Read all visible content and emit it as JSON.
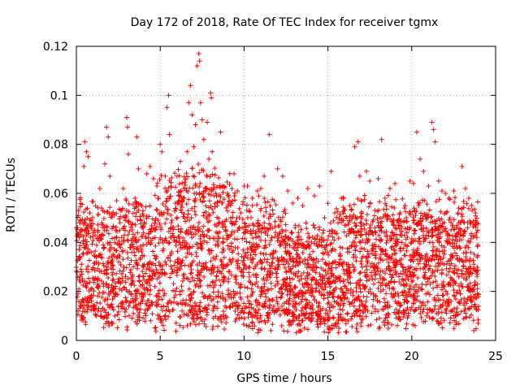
{
  "chart_data": {
    "type": "scatter",
    "title": "Day 172 of 2018, Rate Of TEC Index for receiver tgmx",
    "xlabel": "GPS time / hours",
    "ylabel": "ROTI / TECUs",
    "xlim": [
      0,
      25
    ],
    "ylim": [
      0,
      0.12
    ],
    "xticks": [
      0,
      5,
      10,
      15,
      20,
      25
    ],
    "yticks": [
      0,
      0.02,
      0.04,
      0.06,
      0.08,
      0.1,
      0.12
    ],
    "xtick_labels": [
      "0",
      "5",
      "10",
      "15",
      "20",
      "25"
    ],
    "ytick_labels": [
      "0",
      "0.02",
      "0.04",
      "0.06",
      "0.08",
      "0.1",
      "0.12"
    ],
    "grid": true,
    "marker": "+",
    "color": "#ff0000",
    "series": [
      {
        "name": "ROTI",
        "points": [
          [
            0.0,
            0.046
          ],
          [
            0.1,
            0.012
          ],
          [
            0.2,
            0.048
          ],
          [
            0.3,
            0.028
          ],
          [
            0.45,
            0.071
          ],
          [
            0.5,
            0.081
          ],
          [
            0.6,
            0.077
          ],
          [
            0.7,
            0.075
          ],
          [
            0.8,
            0.052
          ],
          [
            0.9,
            0.016
          ],
          [
            1.0,
            0.044
          ],
          [
            1.2,
            0.034
          ],
          [
            1.4,
            0.062
          ],
          [
            1.6,
            0.039
          ],
          [
            1.7,
            0.072
          ],
          [
            1.8,
            0.087
          ],
          [
            1.9,
            0.083
          ],
          [
            2.0,
            0.067
          ],
          [
            2.2,
            0.029
          ],
          [
            2.4,
            0.057
          ],
          [
            2.6,
            0.048
          ],
          [
            2.8,
            0.062
          ],
          [
            3.0,
            0.091
          ],
          [
            3.05,
            0.087
          ],
          [
            3.1,
            0.076
          ],
          [
            3.3,
            0.036
          ],
          [
            3.5,
            0.058
          ],
          [
            3.6,
            0.083
          ],
          [
            3.7,
            0.07
          ],
          [
            3.9,
            0.055
          ],
          [
            4.0,
            0.03
          ],
          [
            4.2,
            0.068
          ],
          [
            4.4,
            0.071
          ],
          [
            4.6,
            0.066
          ],
          [
            4.8,
            0.063
          ],
          [
            4.9,
            0.058
          ],
          [
            5.0,
            0.08
          ],
          [
            5.1,
            0.077
          ],
          [
            5.3,
            0.067
          ],
          [
            5.4,
            0.095
          ],
          [
            5.5,
            0.1
          ],
          [
            5.55,
            0.084
          ],
          [
            5.7,
            0.049
          ],
          [
            5.9,
            0.056
          ],
          [
            6.0,
            0.067
          ],
          [
            6.2,
            0.073
          ],
          [
            6.4,
            0.062
          ],
          [
            6.6,
            0.077
          ],
          [
            6.7,
            0.097
          ],
          [
            6.8,
            0.104
          ],
          [
            6.9,
            0.092
          ],
          [
            7.0,
            0.079
          ],
          [
            7.1,
            0.088
          ],
          [
            7.2,
            0.112
          ],
          [
            7.3,
            0.117
          ],
          [
            7.35,
            0.114
          ],
          [
            7.4,
            0.097
          ],
          [
            7.5,
            0.09
          ],
          [
            7.6,
            0.082
          ],
          [
            7.8,
            0.089
          ],
          [
            7.9,
            0.074
          ],
          [
            8.0,
            0.101
          ],
          [
            8.05,
            0.099
          ],
          [
            8.1,
            0.077
          ],
          [
            8.2,
            0.059
          ],
          [
            8.4,
            0.055
          ],
          [
            8.6,
            0.085
          ],
          [
            8.8,
            0.063
          ],
          [
            9.0,
            0.06
          ],
          [
            9.2,
            0.05
          ],
          [
            9.4,
            0.068
          ],
          [
            9.6,
            0.061
          ],
          [
            9.8,
            0.052
          ],
          [
            10.0,
            0.063
          ],
          [
            10.2,
            0.063
          ],
          [
            10.5,
            0.058
          ],
          [
            10.8,
            0.061
          ],
          [
            11.0,
            0.062
          ],
          [
            11.2,
            0.067
          ],
          [
            11.5,
            0.084
          ],
          [
            11.8,
            0.057
          ],
          [
            12.0,
            0.07
          ],
          [
            12.3,
            0.067
          ],
          [
            12.6,
            0.061
          ],
          [
            12.9,
            0.056
          ],
          [
            13.2,
            0.058
          ],
          [
            13.5,
            0.055
          ],
          [
            13.8,
            0.062
          ],
          [
            14.2,
            0.059
          ],
          [
            14.5,
            0.063
          ],
          [
            14.8,
            0.05
          ],
          [
            15.0,
            0.056
          ],
          [
            15.2,
            0.069
          ],
          [
            15.4,
            0.052
          ],
          [
            15.6,
            0.048
          ],
          [
            15.8,
            0.058
          ],
          [
            16.0,
            0.047
          ],
          [
            16.3,
            0.055
          ],
          [
            16.6,
            0.079
          ],
          [
            16.8,
            0.081
          ],
          [
            16.9,
            0.067
          ],
          [
            17.0,
            0.057
          ],
          [
            17.3,
            0.069
          ],
          [
            17.5,
            0.065
          ],
          [
            17.8,
            0.053
          ],
          [
            18.0,
            0.066
          ],
          [
            18.2,
            0.082
          ],
          [
            18.4,
            0.058
          ],
          [
            18.7,
            0.062
          ],
          [
            19.0,
            0.064
          ],
          [
            19.3,
            0.052
          ],
          [
            19.6,
            0.055
          ],
          [
            19.9,
            0.065
          ],
          [
            20.1,
            0.064
          ],
          [
            20.3,
            0.085
          ],
          [
            20.5,
            0.074
          ],
          [
            20.7,
            0.069
          ],
          [
            21.0,
            0.063
          ],
          [
            21.2,
            0.089
          ],
          [
            21.3,
            0.086
          ],
          [
            21.4,
            0.081
          ],
          [
            21.6,
            0.065
          ],
          [
            21.8,
            0.061
          ],
          [
            22.0,
            0.06
          ],
          [
            22.2,
            0.058
          ],
          [
            22.5,
            0.061
          ],
          [
            22.8,
            0.054
          ],
          [
            23.0,
            0.071
          ],
          [
            23.2,
            0.062
          ],
          [
            23.4,
            0.058
          ],
          [
            23.6,
            0.053
          ],
          [
            23.8,
            0.052
          ],
          [
            23.9,
            0.034
          ],
          [
            23.95,
            0.007
          ],
          [
            23.7,
            0.004
          ],
          [
            22.6,
            0.01
          ],
          [
            21.5,
            0.008
          ],
          [
            20.2,
            0.006
          ],
          [
            19.2,
            0.009
          ],
          [
            18.6,
            0.005
          ],
          [
            17.4,
            0.006
          ],
          [
            16.2,
            0.008
          ],
          [
            15.5,
            0.007
          ],
          [
            14.6,
            0.009
          ],
          [
            13.6,
            0.005
          ],
          [
            12.7,
            0.008
          ],
          [
            11.6,
            0.004
          ],
          [
            10.5,
            0.007
          ],
          [
            9.7,
            0.009
          ],
          [
            8.9,
            0.01
          ],
          [
            7.7,
            0.013
          ],
          [
            6.3,
            0.012
          ],
          [
            5.2,
            0.014
          ],
          [
            4.3,
            0.013
          ],
          [
            3.4,
            0.011
          ],
          [
            2.3,
            0.01
          ],
          [
            1.3,
            0.012
          ],
          [
            0.4,
            0.009
          ]
        ],
        "band": {
          "comment": "dense cloud of points spanning GPS 0-24 h, ROTI roughly 0.005-0.06 TECU",
          "x_range": [
            0,
            24
          ],
          "typical_low": 0.008,
          "typical_high": 0.055
        }
      }
    ]
  }
}
